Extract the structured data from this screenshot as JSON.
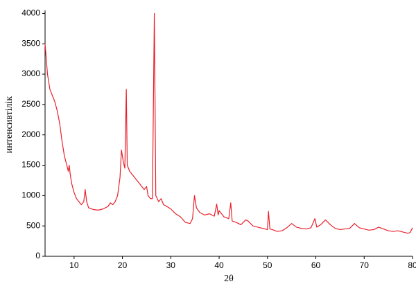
{
  "chart_data": {
    "type": "line",
    "x_label": "2θ",
    "y_label": "интенсивтiлiк",
    "color": "#e8202a",
    "xlim": [
      4,
      80
    ],
    "ylim": [
      0,
      4050
    ],
    "xticks": [
      10,
      20,
      30,
      40,
      50,
      60,
      70,
      80
    ],
    "yticks": [
      0,
      500,
      1000,
      1500,
      2000,
      2500,
      3000,
      3500,
      4000
    ],
    "x": [
      4,
      4.2,
      4.5,
      5,
      5.5,
      6,
      6.5,
      7,
      7.5,
      8,
      8.5,
      8.8,
      9,
      9.2,
      9.5,
      10,
      10.5,
      11,
      11.5,
      12,
      12.3,
      12.6,
      13,
      14,
      15,
      16,
      17,
      17.5,
      18,
      18.5,
      19,
      19.5,
      19.8,
      20.2,
      20.5,
      20.8,
      21,
      21.5,
      22,
      22.5,
      23,
      23.5,
      24,
      24.5,
      25,
      25.3,
      25.8,
      26.2,
      26.6,
      26.9,
      27.5,
      28,
      28.5,
      29,
      30,
      31,
      32,
      33,
      34,
      34.5,
      34.9,
      35.3,
      36,
      37,
      38,
      39,
      39.5,
      39.8,
      40,
      41,
      42,
      42.4,
      42.7,
      43.5,
      44.5,
      45.5,
      46,
      47,
      48,
      49,
      50,
      50.2,
      50.5,
      51,
      52,
      53,
      54,
      55,
      56,
      57,
      58,
      59,
      59.8,
      60.2,
      61,
      62,
      63,
      64,
      65,
      66,
      67,
      68,
      69,
      70,
      71,
      72,
      73,
      74,
      75,
      76,
      77,
      78,
      79,
      79.5,
      80
    ],
    "values": [
      3500,
      3300,
      3000,
      2750,
      2650,
      2550,
      2400,
      2200,
      1900,
      1650,
      1500,
      1400,
      1500,
      1350,
      1200,
      1050,
      950,
      900,
      850,
      900,
      1100,
      900,
      800,
      770,
      760,
      780,
      820,
      880,
      850,
      900,
      1000,
      1300,
      1750,
      1550,
      1450,
      2750,
      1500,
      1400,
      1350,
      1300,
      1250,
      1200,
      1150,
      1100,
      1150,
      1000,
      950,
      950,
      4000,
      1000,
      900,
      950,
      850,
      830,
      780,
      700,
      650,
      560,
      540,
      620,
      1000,
      800,
      720,
      680,
      700,
      660,
      860,
      680,
      750,
      650,
      620,
      880,
      580,
      560,
      520,
      600,
      580,
      500,
      480,
      460,
      440,
      740,
      450,
      440,
      410,
      420,
      470,
      540,
      480,
      460,
      450,
      470,
      620,
      480,
      520,
      600,
      520,
      460,
      440,
      450,
      460,
      540,
      470,
      450,
      430,
      440,
      480,
      450,
      420,
      410,
      420,
      400,
      380,
      390,
      470
    ]
  }
}
